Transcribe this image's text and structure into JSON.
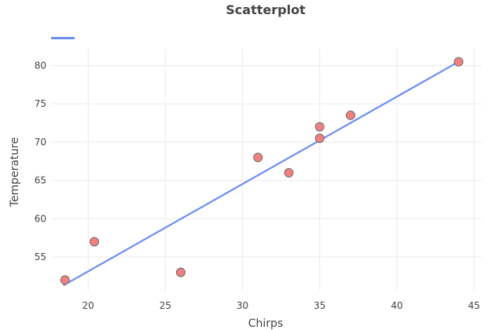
{
  "chart_data": {
    "type": "scatter",
    "title": "Scatterplot",
    "xlabel": "Chirps",
    "ylabel": "Temperature",
    "xlim": [
      17.6,
      45.5
    ],
    "ylim": [
      50.6,
      82.2
    ],
    "x_ticks": [
      20,
      25,
      30,
      35,
      40,
      45
    ],
    "y_ticks": [
      55,
      60,
      65,
      70,
      75,
      80
    ],
    "grid": true,
    "legend_position": "top-left",
    "series": [
      {
        "type": "scatter",
        "color": "#f08080",
        "x": [
          18.5,
          20.4,
          26.0,
          31.0,
          33.0,
          35.0,
          35.0,
          37.0,
          44.0
        ],
        "y": [
          52.0,
          57.0,
          53.0,
          68.0,
          66.0,
          72.0,
          70.5,
          73.5,
          80.5
        ]
      },
      {
        "type": "line",
        "color": "#6c8ef0",
        "x": [
          18.4,
          44.0
        ],
        "y": [
          51.3,
          80.5
        ]
      }
    ]
  }
}
